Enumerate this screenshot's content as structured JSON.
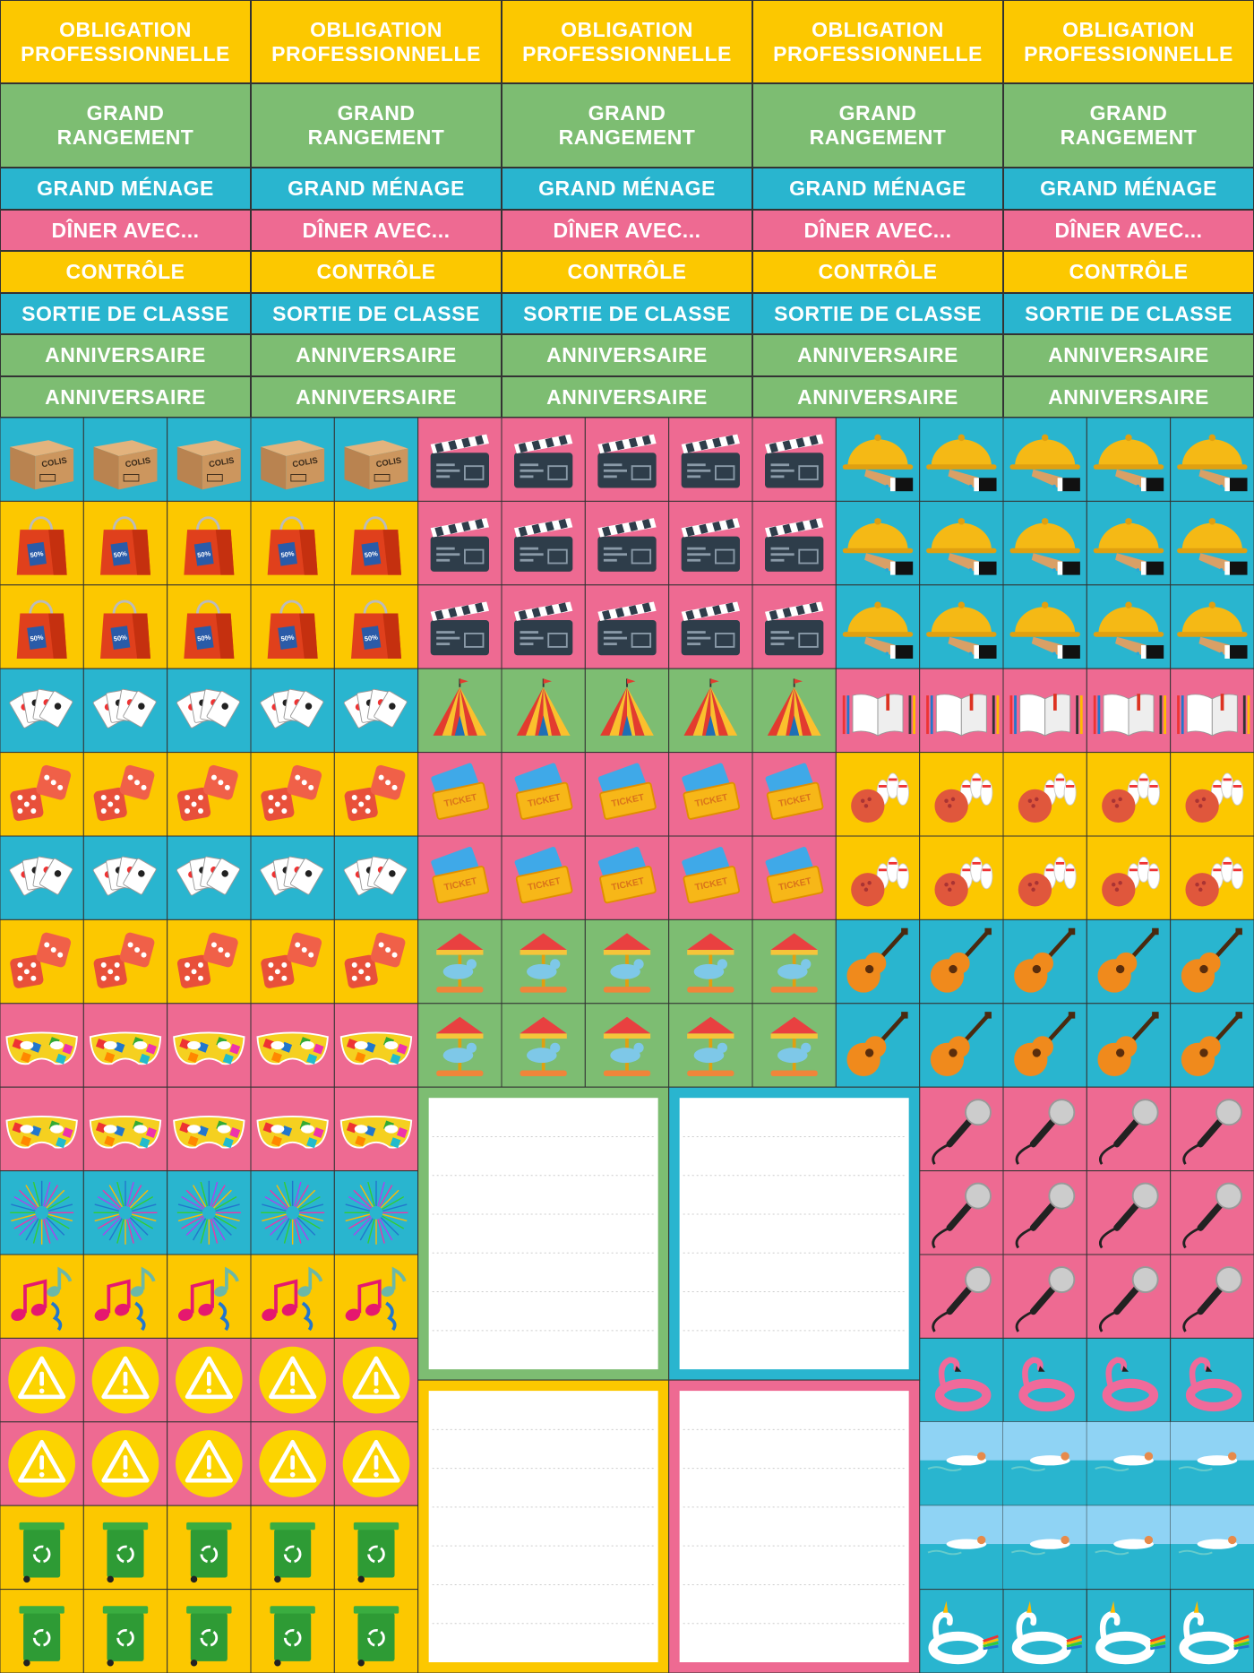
{
  "label_rows": [
    {
      "color": "#fcc800",
      "texts": [
        "OBLIGATION PROFESSIONNELLE",
        "OBLIGATION PROFESSIONNELLE",
        "OBLIGATION PROFESSIONNELLE",
        "OBLIGATION PROFESSIONNELLE",
        "OBLIGATION PROFESSIONNELLE"
      ]
    },
    {
      "color": "#7dbd72",
      "texts": [
        "GRAND RANGEMENT",
        "GRAND RANGEMENT",
        "GRAND RANGEMENT",
        "GRAND RANGEMENT",
        "GRAND RANGEMENT"
      ]
    },
    {
      "color": "#29b5cf",
      "texts": [
        "GRAND MÉNAGE",
        "GRAND MÉNAGE",
        "GRAND MÉNAGE",
        "GRAND MÉNAGE",
        "GRAND MÉNAGE"
      ]
    },
    {
      "color": "#ee6a92",
      "texts": [
        "DÎNER AVEC...",
        "DÎNER AVEC...",
        "DÎNER AVEC...",
        "DÎNER AVEC...",
        "DÎNER AVEC..."
      ]
    },
    {
      "color": "#fcc800",
      "texts": [
        "CONTRÔLE",
        "CONTRÔLE",
        "CONTRÔLE",
        "CONTRÔLE",
        "CONTRÔLE"
      ]
    },
    {
      "color": "#29b5cf",
      "texts": [
        "SORTIE DE CLASSE",
        "SORTIE DE CLASSE",
        "SORTIE DE CLASSE",
        "SORTIE DE CLASSE",
        "SORTIE DE CLASSE"
      ]
    },
    {
      "color": "#7dbd72",
      "texts": [
        "ANNIVERSAIRE",
        "ANNIVERSAIRE",
        "ANNIVERSAIRE",
        "ANNIVERSAIRE",
        "ANNIVERSAIRE"
      ]
    },
    {
      "color": "#7dbd72",
      "texts": [
        "ANNIVERSAIRE",
        "ANNIVERSAIRE",
        "ANNIVERSAIRE",
        "ANNIVERSAIRE",
        "ANNIVERSAIRE"
      ]
    }
  ],
  "icon_texts": {
    "colis": "COLIS",
    "ticket": "TICKET",
    "sale": "50%"
  }
}
